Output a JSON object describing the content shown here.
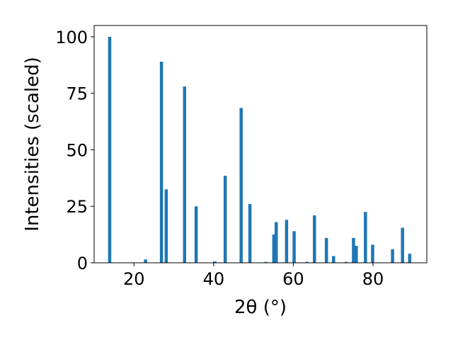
{
  "chart_data": {
    "type": "bar",
    "xlabel": "2θ (°)",
    "ylabel": "Intensities (scaled)",
    "xlim": [
      10,
      93.5
    ],
    "ylim": [
      0,
      105
    ],
    "xticks": [
      20,
      40,
      60,
      80
    ],
    "yticks": [
      0,
      25,
      50,
      75,
      100
    ],
    "grid": false,
    "bar_color": "#1f77b4",
    "bars": [
      {
        "x": 13.9,
        "y": 100
      },
      {
        "x": 19.6,
        "y": 0.2
      },
      {
        "x": 22.9,
        "y": 1.5
      },
      {
        "x": 26.9,
        "y": 89
      },
      {
        "x": 28.1,
        "y": 32.5
      },
      {
        "x": 32.7,
        "y": 78
      },
      {
        "x": 35.6,
        "y": 25
      },
      {
        "x": 40.3,
        "y": 0.6
      },
      {
        "x": 42.9,
        "y": 38.5
      },
      {
        "x": 46.9,
        "y": 68.5
      },
      {
        "x": 49.1,
        "y": 26
      },
      {
        "x": 53.1,
        "y": 0.4
      },
      {
        "x": 55.1,
        "y": 12.5
      },
      {
        "x": 55.7,
        "y": 18
      },
      {
        "x": 58.3,
        "y": 19
      },
      {
        "x": 60.2,
        "y": 14
      },
      {
        "x": 63.4,
        "y": 0.4
      },
      {
        "x": 65.3,
        "y": 21
      },
      {
        "x": 68.3,
        "y": 11
      },
      {
        "x": 70.1,
        "y": 3
      },
      {
        "x": 73.2,
        "y": 0.4
      },
      {
        "x": 75.1,
        "y": 11
      },
      {
        "x": 75.8,
        "y": 7.5
      },
      {
        "x": 78.1,
        "y": 22.5
      },
      {
        "x": 79.9,
        "y": 8
      },
      {
        "x": 84.9,
        "y": 6
      },
      {
        "x": 87.4,
        "y": 15.5
      },
      {
        "x": 89.2,
        "y": 4
      }
    ]
  }
}
